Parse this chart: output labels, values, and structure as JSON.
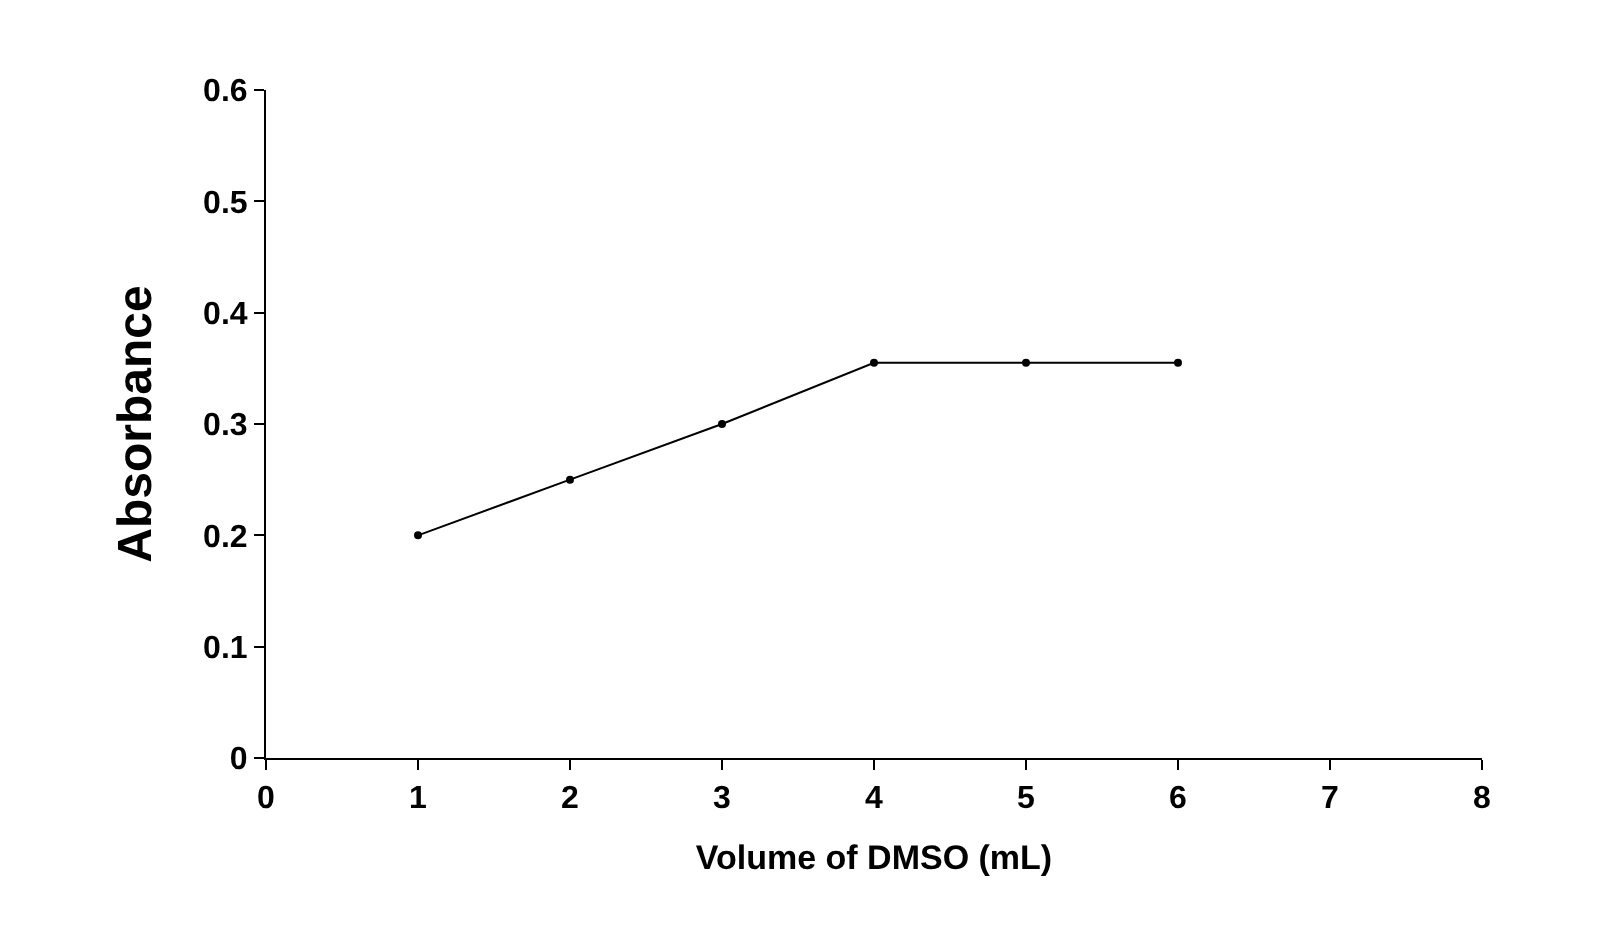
{
  "chart_data": {
    "type": "line",
    "xlabel": "Volume of DMSO (mL)",
    "ylabel": "Absorbance",
    "x": [
      1,
      2,
      3,
      4,
      5,
      6
    ],
    "series": [
      {
        "color": "#000000",
        "values": [
          0.2,
          0.25,
          0.3,
          0.355,
          0.355,
          0.355
        ]
      }
    ],
    "xlim": [
      0,
      8
    ],
    "xticks": [
      0,
      1,
      2,
      3,
      4,
      5,
      6,
      7,
      8
    ],
    "ylim": [
      0,
      0.6
    ],
    "yticks": [
      0,
      0.1,
      0.2,
      0.3,
      0.4,
      0.5,
      0.6
    ],
    "marker": "circle",
    "line_style": "solid"
  }
}
